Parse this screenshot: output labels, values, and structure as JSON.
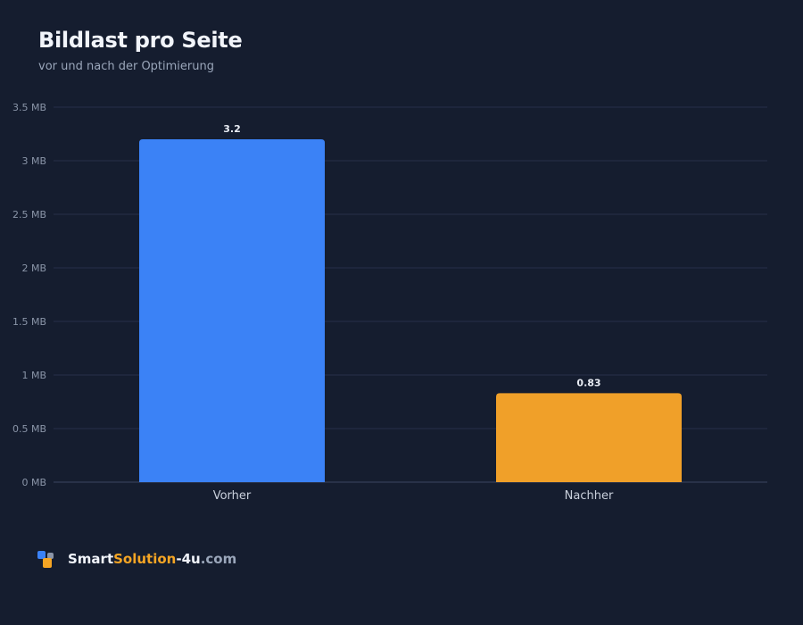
{
  "header": {
    "title": "Bildlast pro Seite",
    "subtitle": "vor und nach der Optimierung"
  },
  "chart_data": {
    "type": "bar",
    "categories": [
      "Vorher",
      "Nachher"
    ],
    "values": [
      3.2,
      0.83
    ],
    "value_labels": [
      "3.2",
      "0.83"
    ],
    "bar_colors": [
      "#3b82f6",
      "#f0a029"
    ],
    "ylim": [
      0,
      3.5
    ],
    "yticks": [
      0,
      0.5,
      1,
      1.5,
      2,
      2.5,
      3,
      3.5
    ],
    "ytick_labels": [
      "0 MB",
      "0.5 MB",
      "1 MB",
      "1.5 MB",
      "2 MB",
      "2.5 MB",
      "3 MB",
      "3.5 MB"
    ],
    "grid": true,
    "title": "Bildlast pro Seite",
    "subtitle": "vor und nach der Optimierung"
  },
  "brand": {
    "part1": "Smart",
    "part2": "Solution",
    "part3": "-4u",
    "part4": ".com"
  }
}
